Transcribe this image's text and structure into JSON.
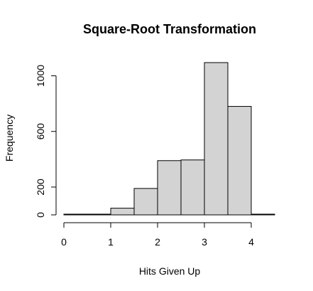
{
  "chart_data": {
    "type": "bar",
    "title": "Square-Root Transformation",
    "xlabel": "Hits Given Up",
    "ylabel": "Frequency",
    "bins": [
      {
        "start": 0.0,
        "end": 0.5,
        "value": 3
      },
      {
        "start": 0.5,
        "end": 1.0,
        "value": 3
      },
      {
        "start": 1.0,
        "end": 1.5,
        "value": 48
      },
      {
        "start": 1.5,
        "end": 2.0,
        "value": 190
      },
      {
        "start": 2.0,
        "end": 2.5,
        "value": 390
      },
      {
        "start": 2.5,
        "end": 3.0,
        "value": 395
      },
      {
        "start": 3.0,
        "end": 3.5,
        "value": 1095
      },
      {
        "start": 3.5,
        "end": 4.0,
        "value": 780
      },
      {
        "start": 4.0,
        "end": 4.5,
        "value": 3
      }
    ],
    "xlim": [
      0,
      4.5
    ],
    "ylim": [
      0,
      1100
    ],
    "x_ticks": [
      "0",
      "1",
      "2",
      "3",
      "4"
    ],
    "y_ticks": [
      "0",
      "200",
      "600",
      "1000"
    ],
    "bar_color": "#d3d3d3",
    "grid": false,
    "legend": "none"
  }
}
